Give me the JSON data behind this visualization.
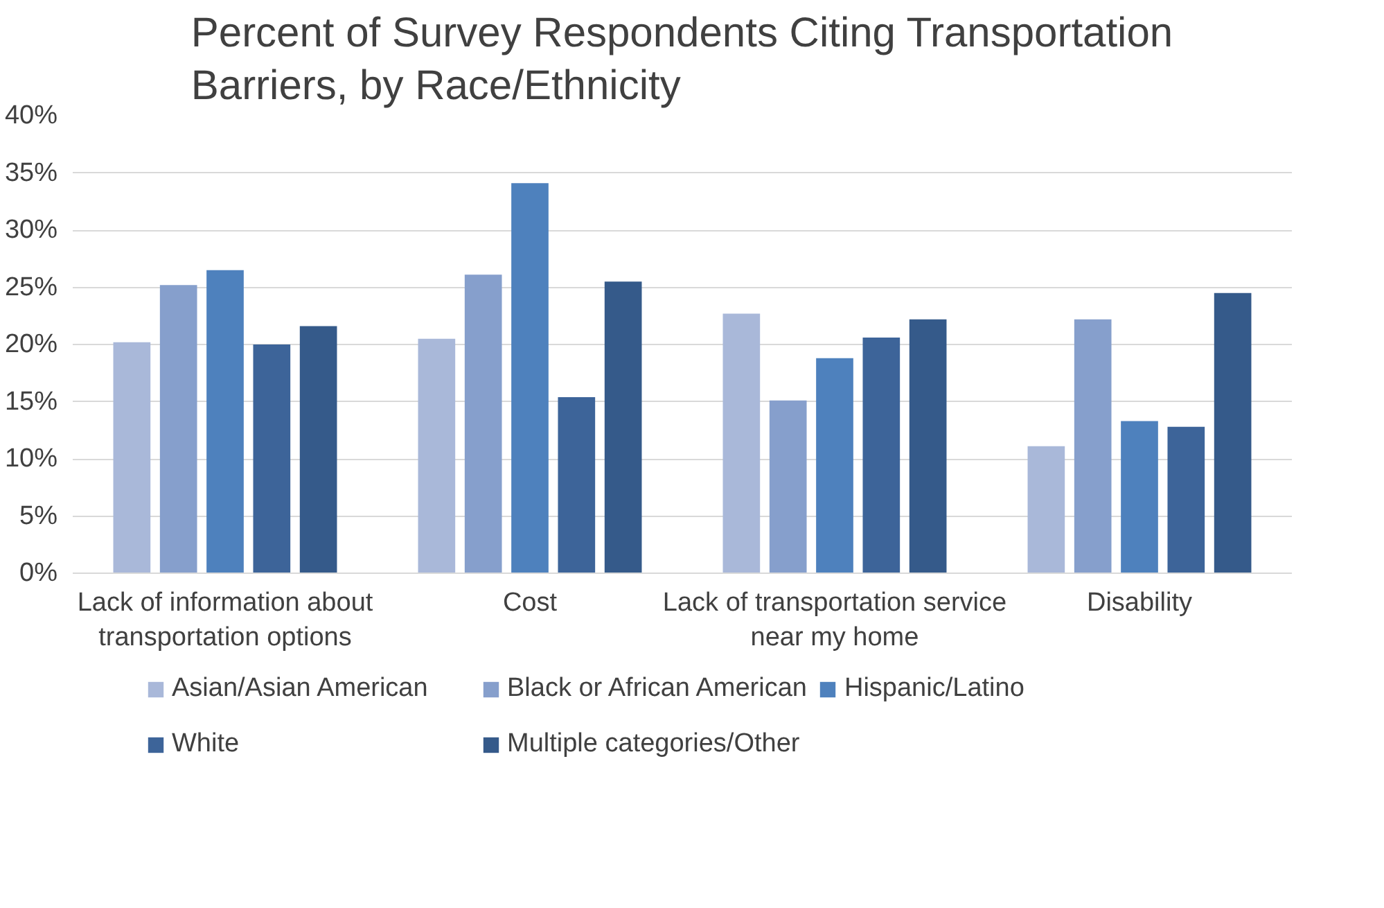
{
  "chart_data": {
    "type": "bar",
    "title": "Percent of Survey Respondents Citing Transportation Barriers, by Race/Ethnicity",
    "categories": [
      "Lack of information about transportation options",
      "Cost",
      "Lack of transportation service near my home",
      "Disability"
    ],
    "series": [
      {
        "name": "Asian/Asian American",
        "color": "#a9b8d9",
        "values": [
          20.2,
          20.5,
          22.7,
          11.1
        ]
      },
      {
        "name": "Black or African American",
        "color": "#869fcc",
        "values": [
          25.2,
          26.1,
          15.1,
          22.2
        ]
      },
      {
        "name": "Hispanic/Latino",
        "color": "#4e81bd",
        "values": [
          26.5,
          34.1,
          18.8,
          13.3
        ]
      },
      {
        "name": "White",
        "color": "#3d6499",
        "values": [
          20.0,
          15.4,
          20.6,
          12.8
        ]
      },
      {
        "name": "Multiple categories/Other",
        "color": "#355a8a",
        "values": [
          21.6,
          25.5,
          22.2,
          24.5
        ]
      }
    ],
    "ylim": [
      0,
      40
    ],
    "yticks": [
      {
        "value": 0,
        "label": "0%"
      },
      {
        "value": 5,
        "label": "5%"
      },
      {
        "value": 10,
        "label": "10%"
      },
      {
        "value": 15,
        "label": "15%"
      },
      {
        "value": 20,
        "label": "20%"
      },
      {
        "value": 25,
        "label": "25%"
      },
      {
        "value": 30,
        "label": "30%"
      },
      {
        "value": 35,
        "label": "35%"
      },
      {
        "value": 40,
        "label": "40%"
      }
    ],
    "grid": "y",
    "legend": "bottom"
  }
}
